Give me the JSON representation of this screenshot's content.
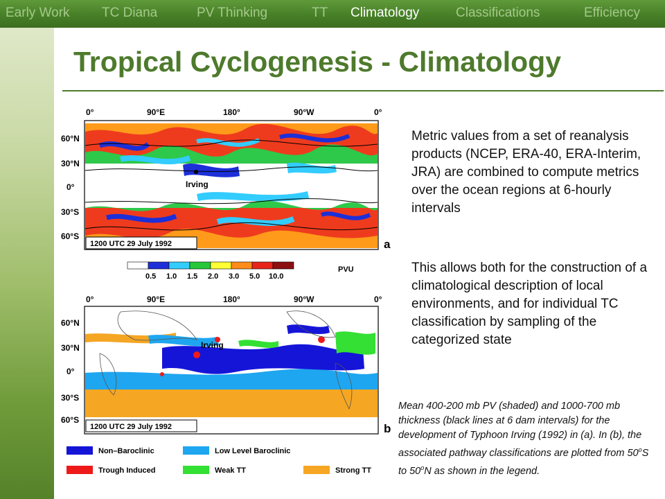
{
  "nav": {
    "tabs": [
      {
        "label": "Early Work",
        "active": false
      },
      {
        "label": "TC Diana",
        "active": false
      },
      {
        "label": "PV Thinking",
        "active": false
      },
      {
        "label": "TT",
        "active": false
      },
      {
        "label": "Climatology",
        "active": true
      },
      {
        "label": "Classifications",
        "active": false
      },
      {
        "label": "Efficiency",
        "active": false
      }
    ]
  },
  "title": "Tropical Cyclogenesis - Climatology",
  "map_a": {
    "lon_labels": [
      "0°",
      "90°E",
      "180°",
      "90°W",
      "0°"
    ],
    "lat_labels": [
      "60°N",
      "30°N",
      "0°",
      "30°S",
      "60°S"
    ],
    "storm_label": "Irving",
    "time_label": "1200 UTC 29 July 1992",
    "panel_letter": "a",
    "colorbar_ticks": [
      "0.5",
      "1.0",
      "1.5",
      "2.0",
      "3.0",
      "5.0",
      "10.0"
    ],
    "colorbar_unit": "PVU",
    "colorbar_colors": [
      "#ffffff",
      "#1f2fd8",
      "#33ccff",
      "#27c83a",
      "#ffff33",
      "#ff8c1a",
      "#e8241a",
      "#8b1010"
    ]
  },
  "map_b": {
    "lon_labels": [
      "0°",
      "90°E",
      "180°",
      "90°W",
      "0°"
    ],
    "lat_labels": [
      "60°N",
      "30°N",
      "0°",
      "30°S",
      "60°S"
    ],
    "storm_label": "Irving",
    "time_label": "1200 UTC 29 July 1992",
    "panel_letter": "b",
    "legend": [
      {
        "label": "Non–Baroclinic",
        "color": "#1515d8"
      },
      {
        "label": "Low Level Baroclinic",
        "color": "#1ea6f0"
      },
      {
        "label": "Trough Induced",
        "color": "#ee1a1a"
      },
      {
        "label": "Weak TT",
        "color": "#33e033"
      },
      {
        "label": "Strong TT",
        "color": "#f5a623"
      }
    ]
  },
  "body": {
    "paragraph1": "Metric values from a set of reanalysis products (NCEP, ERA-40, ERA-Interim, JRA) are combined to compute metrics over the ocean regions at 6-hourly intervals",
    "paragraph2": "This allows both for the construction of a climatological description of local environments, and for individual TC classification by sampling of the categorized state"
  },
  "caption": {
    "part1": "Mean 400-200 mb PV (shaded) and 1000-700 mb thickness (black lines at 6 dam intervals) for the development of Typhoon Irving (1992) in (a).  In (b), the associated pathway classifications are plotted from 50",
    "sup1": "o",
    "part2": "S to 50",
    "sup2": "o",
    "part3": "N as shown in the legend."
  }
}
